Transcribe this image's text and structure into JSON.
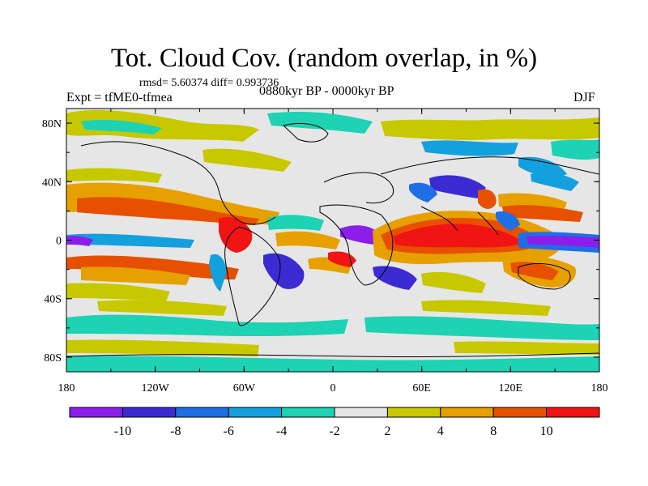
{
  "title": "Tot. Cloud Cov. (random overlap, in %)",
  "stats": "rmsd= 5.60374 diff= 0.993736",
  "experiment": "Expt = tfME0-tfmea",
  "period": "0880kyr BP - 0000kyr BP",
  "season": "DJF",
  "axes": {
    "lon_labels": [
      "180",
      "120W",
      "60W",
      "0",
      "60E",
      "120E",
      "180"
    ],
    "lat_labels": [
      "80N",
      "40N",
      "0",
      "40S",
      "80S"
    ]
  },
  "colorbar": {
    "labels": [
      "-10",
      "-8",
      "-6",
      "-4",
      "-2",
      "2",
      "4",
      "8",
      "10"
    ],
    "colors": [
      "#8c1eeb",
      "#3c2bd3",
      "#1e6ee6",
      "#14a0dc",
      "#1ed2b4",
      "#e6e6e6",
      "#c8c800",
      "#e6a000",
      "#e65000",
      "#f01414"
    ]
  },
  "background_color": "#e6e6e6"
}
